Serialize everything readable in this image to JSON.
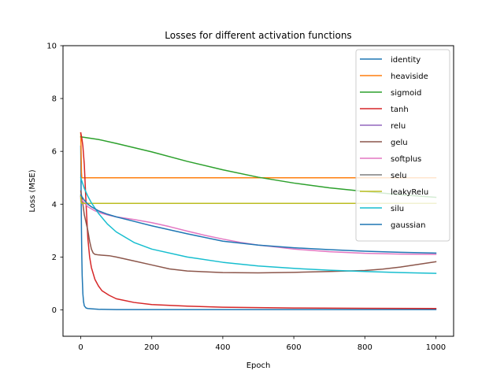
{
  "chart_data": {
    "type": "line",
    "title": "Losses for different activation functions",
    "xlabel": "Epoch",
    "ylabel": "Loss (MSE)",
    "xlim": [
      -50,
      1050
    ],
    "ylim": [
      -1,
      10
    ],
    "xticks": [
      0,
      200,
      400,
      600,
      800,
      1000
    ],
    "yticks": [
      0,
      2,
      4,
      6,
      8,
      10
    ],
    "grid": false,
    "legend_position": "top-right",
    "series": [
      {
        "name": "identity",
        "color": "#1f77b4",
        "x": [
          0,
          1,
          2,
          3,
          4,
          6,
          8,
          10,
          15,
          20,
          30,
          50,
          100,
          200,
          400,
          1000
        ],
        "y": [
          6.2,
          4.5,
          3.0,
          2.0,
          1.3,
          0.6,
          0.3,
          0.15,
          0.07,
          0.05,
          0.04,
          0.02,
          0.01,
          0.01,
          0.01,
          0.01
        ]
      },
      {
        "name": "heaviside",
        "color": "#ff7f0e",
        "x": [
          0,
          1,
          2,
          3,
          1000
        ],
        "y": [
          6.7,
          6.0,
          5.2,
          5.0,
          5.0
        ]
      },
      {
        "name": "sigmoid",
        "color": "#2ca02c",
        "x": [
          0,
          50,
          100,
          200,
          300,
          400,
          500,
          600,
          700,
          800,
          900,
          1000
        ],
        "y": [
          6.55,
          6.45,
          6.3,
          5.98,
          5.62,
          5.3,
          5.02,
          4.8,
          4.62,
          4.48,
          4.36,
          4.26
        ]
      },
      {
        "name": "tanh",
        "color": "#d62728",
        "x": [
          0,
          3,
          6,
          10,
          15,
          20,
          25,
          30,
          40,
          50,
          60,
          80,
          100,
          150,
          200,
          300,
          400,
          600,
          800,
          1000
        ],
        "y": [
          6.7,
          6.5,
          6.2,
          5.5,
          4.0,
          2.7,
          2.0,
          1.6,
          1.15,
          0.9,
          0.72,
          0.55,
          0.42,
          0.28,
          0.2,
          0.14,
          0.1,
          0.07,
          0.06,
          0.05
        ]
      },
      {
        "name": "relu",
        "color": "#9467bd",
        "x": [
          0,
          1,
          2,
          3,
          1000
        ],
        "y": [
          4.3,
          4.1,
          4.05,
          4.03,
          4.03
        ]
      },
      {
        "name": "gelu",
        "color": "#8c564b",
        "x": [
          0,
          5,
          10,
          15,
          20,
          25,
          30,
          35,
          40,
          50,
          80,
          100,
          150,
          200,
          250,
          300,
          400,
          500,
          600,
          700,
          800,
          850,
          900,
          950,
          1000
        ],
        "y": [
          4.5,
          4.1,
          3.6,
          3.3,
          3.0,
          2.6,
          2.3,
          2.15,
          2.1,
          2.08,
          2.05,
          2.0,
          1.85,
          1.7,
          1.55,
          1.47,
          1.41,
          1.4,
          1.42,
          1.45,
          1.49,
          1.54,
          1.62,
          1.72,
          1.82
        ]
      },
      {
        "name": "softplus",
        "color": "#e377c2",
        "x": [
          0,
          10,
          20,
          40,
          60,
          80,
          100,
          150,
          200,
          250,
          300,
          350,
          400,
          450,
          500,
          550,
          600,
          700,
          800,
          900,
          1000
        ],
        "y": [
          4.2,
          4.05,
          3.9,
          3.75,
          3.65,
          3.58,
          3.52,
          3.42,
          3.3,
          3.15,
          2.98,
          2.82,
          2.68,
          2.55,
          2.45,
          2.38,
          2.3,
          2.2,
          2.14,
          2.11,
          2.1
        ]
      },
      {
        "name": "selu",
        "color": "#7f7f7f",
        "x": [
          0,
          1,
          2,
          3,
          1000
        ],
        "y": [
          4.3,
          4.1,
          4.05,
          4.03,
          4.03
        ]
      },
      {
        "name": "leakyRelu",
        "color": "#bcbd22",
        "x": [
          0,
          1,
          2,
          3,
          1000
        ],
        "y": [
          4.3,
          4.1,
          4.05,
          4.03,
          4.03
        ]
      },
      {
        "name": "silu",
        "color": "#17becf",
        "x": [
          0,
          5,
          10,
          20,
          30,
          50,
          75,
          100,
          150,
          200,
          300,
          400,
          500,
          600,
          700,
          800,
          900,
          1000
        ],
        "y": [
          5.0,
          4.8,
          4.6,
          4.3,
          4.05,
          3.65,
          3.25,
          2.95,
          2.55,
          2.3,
          2.0,
          1.8,
          1.66,
          1.57,
          1.5,
          1.45,
          1.41,
          1.38
        ]
      },
      {
        "name": "gaussian",
        "color": "#1f77b4",
        "x": [
          0,
          5,
          10,
          20,
          30,
          50,
          75,
          100,
          150,
          200,
          300,
          400,
          500,
          600,
          700,
          800,
          900,
          1000
        ],
        "y": [
          4.35,
          4.25,
          4.15,
          4.0,
          3.9,
          3.75,
          3.62,
          3.52,
          3.35,
          3.18,
          2.88,
          2.6,
          2.45,
          2.35,
          2.28,
          2.22,
          2.18,
          2.15
        ]
      }
    ]
  }
}
